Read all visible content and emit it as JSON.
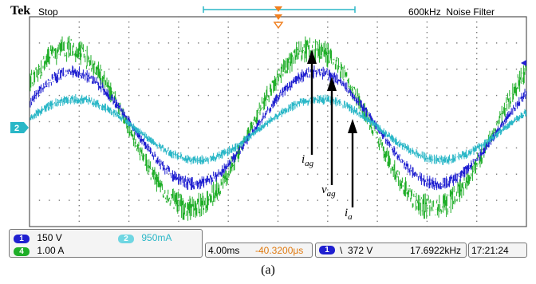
{
  "header": {
    "brand": "Tek",
    "acq_state": "Stop",
    "bandwidth": "600kHz",
    "filter": "Noise Filter"
  },
  "channels": {
    "ch1": {
      "number": "1",
      "scale": "150 V",
      "color": "#1f1fd0"
    },
    "ch2": {
      "number": "2",
      "scale": "950mA",
      "color": "#2ab7c7"
    },
    "ch4": {
      "number": "4",
      "scale": "1.00 A",
      "color": "#1fae28"
    }
  },
  "timebase": {
    "time_per_div": "4.00ms",
    "trigger_position": "-40.3200μs"
  },
  "trigger": {
    "source": "1",
    "slope_symbol": "\\",
    "level": "372 V",
    "frequency": "17.6922kHz",
    "clock": "17:21:24"
  },
  "annotations": {
    "iag": {
      "base": "i",
      "sub": "ag"
    },
    "vag": {
      "base": "v",
      "sub": "ag"
    },
    "ia": {
      "base": "i",
      "sub": "a"
    }
  },
  "caption": "(a)",
  "colors": {
    "grid_dots": "#777777",
    "frame": "#555555",
    "trigger_marker": "#f08020",
    "zero_marker": "#2ab7c7",
    "trig_level_marker": "#1f1fd0"
  }
}
